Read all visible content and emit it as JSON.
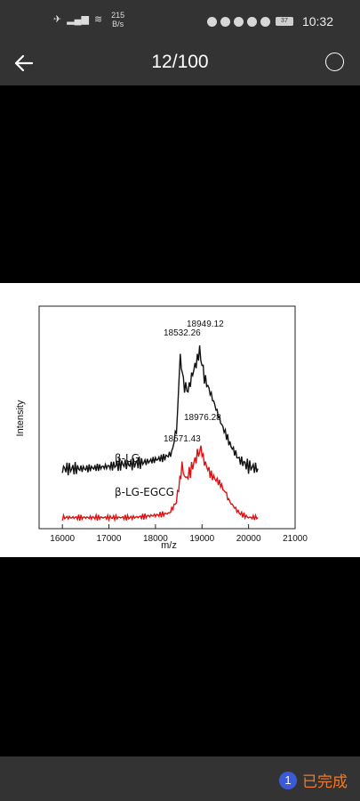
{
  "status_bar": {
    "network_speed_value": "215",
    "network_speed_unit": "B/s",
    "battery": "37",
    "time": "10:32"
  },
  "header": {
    "page_counter": "12/100"
  },
  "bottom_bar": {
    "selected_count": "1",
    "done_label": "已完成"
  },
  "colors": {
    "bar_bg": "#333333",
    "accent_blue": "#3d5ad6",
    "done_orange": "#f07a2a",
    "series_black": "#111111",
    "series_red": "#e01010"
  },
  "chart_data": {
    "type": "line",
    "xlabel": "m/z",
    "ylabel": "Intensity",
    "xlim": [
      15500,
      21000
    ],
    "xticks": [
      16000,
      17000,
      18000,
      19000,
      20000,
      21000
    ],
    "series": [
      {
        "name": "β-LG",
        "color": "#111111",
        "x": [
          16000,
          16500,
          17000,
          17300,
          17500,
          17800,
          18000,
          18200,
          18350,
          18450,
          18532,
          18600,
          18700,
          18800,
          18900,
          18949,
          19050,
          19200,
          19400,
          19600,
          19800,
          20000,
          20200
        ],
        "y": [
          0.27,
          0.27,
          0.28,
          0.29,
          0.29,
          0.3,
          0.31,
          0.32,
          0.34,
          0.45,
          0.78,
          0.65,
          0.62,
          0.7,
          0.76,
          0.8,
          0.68,
          0.6,
          0.48,
          0.38,
          0.31,
          0.28,
          0.27
        ]
      },
      {
        "name": "β-LG-EGCG",
        "color": "#e01010",
        "x": [
          16000,
          16500,
          17000,
          17500,
          18000,
          18300,
          18450,
          18571,
          18650,
          18750,
          18900,
          18976,
          19050,
          19200,
          19400,
          19600,
          19800,
          20000,
          20200
        ],
        "y": [
          0.05,
          0.05,
          0.05,
          0.05,
          0.06,
          0.07,
          0.12,
          0.28,
          0.22,
          0.26,
          0.33,
          0.36,
          0.3,
          0.24,
          0.2,
          0.12,
          0.07,
          0.05,
          0.05
        ]
      }
    ],
    "annotations": [
      {
        "text": "18949.12"
      },
      {
        "text": "18532.26"
      },
      {
        "text": "18976.28"
      },
      {
        "text": "18571.43"
      }
    ]
  }
}
